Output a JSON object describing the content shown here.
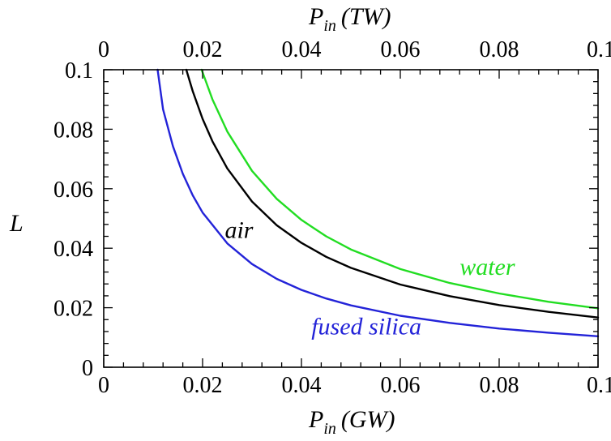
{
  "chart_data": {
    "type": "line",
    "title": "",
    "ylabel": "L",
    "xlabel_bottom": {
      "main": "P",
      "sub": "in",
      "unit": "(GW)"
    },
    "xlabel_top": {
      "main": "P",
      "sub": "in",
      "unit": "(TW)"
    },
    "xlim": [
      0,
      0.1
    ],
    "ylim": [
      0,
      0.1
    ],
    "x_ticks": [
      "0",
      "0.02",
      "0.04",
      "0.06",
      "0.08",
      "0.1"
    ],
    "x_tick_values": [
      0,
      0.02,
      0.04,
      0.06,
      0.08,
      0.1
    ],
    "y_ticks": [
      "0",
      "0.02",
      "0.04",
      "0.06",
      "0.08",
      "0.1"
    ],
    "y_tick_values": [
      0,
      0.02,
      0.04,
      0.06,
      0.08,
      0.1
    ],
    "grid": false,
    "legend": "inline labels",
    "series": [
      {
        "name": "fused silica",
        "color": "#2323d8",
        "label_anchor": [
          0.042,
          0.011
        ],
        "x": [
          0.0109,
          0.012,
          0.014,
          0.016,
          0.018,
          0.02,
          0.025,
          0.03,
          0.035,
          0.04,
          0.045,
          0.05,
          0.06,
          0.07,
          0.08,
          0.09,
          0.1
        ],
        "y": [
          0.1,
          0.0867,
          0.0743,
          0.065,
          0.0578,
          0.052,
          0.0416,
          0.0347,
          0.0297,
          0.026,
          0.0231,
          0.0208,
          0.0173,
          0.0149,
          0.013,
          0.0116,
          0.0104
        ]
      },
      {
        "name": "air",
        "color": "#000000",
        "label_anchor": [
          0.0245,
          0.0435
        ],
        "x": [
          0.0167,
          0.018,
          0.02,
          0.022,
          0.025,
          0.03,
          0.035,
          0.04,
          0.045,
          0.05,
          0.06,
          0.07,
          0.08,
          0.09,
          0.1
        ],
        "y": [
          0.1,
          0.0928,
          0.0835,
          0.0759,
          0.0668,
          0.0557,
          0.0477,
          0.0418,
          0.0371,
          0.0334,
          0.0278,
          0.0239,
          0.0209,
          0.0186,
          0.0167
        ]
      },
      {
        "name": "water",
        "color": "#22dd22",
        "label_anchor": [
          0.072,
          0.031
        ],
        "x": [
          0.0198,
          0.022,
          0.025,
          0.03,
          0.035,
          0.04,
          0.045,
          0.05,
          0.06,
          0.07,
          0.08,
          0.09,
          0.1
        ],
        "y": [
          0.1,
          0.09,
          0.0792,
          0.066,
          0.0566,
          0.0495,
          0.044,
          0.0396,
          0.033,
          0.0283,
          0.0248,
          0.022,
          0.0198
        ]
      }
    ]
  }
}
